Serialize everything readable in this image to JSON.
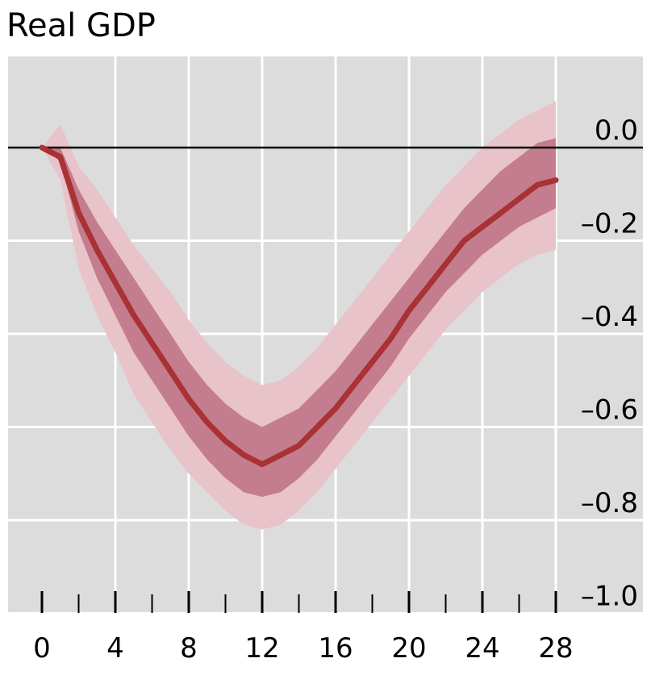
{
  "chart_data": {
    "type": "line",
    "title": "Real GDP",
    "xlabel": "",
    "ylabel": "",
    "xlim": [
      -1.5,
      31
    ],
    "ylim": [
      -1.05,
      0.2
    ],
    "x_ticks": [
      0,
      4,
      8,
      12,
      16,
      20,
      24,
      28
    ],
    "x_tick_labels": [
      "0",
      "4",
      "8",
      "12",
      "16",
      "20",
      "24",
      "28"
    ],
    "y_ticks": [
      0.0,
      -0.2,
      -0.4,
      -0.6,
      -0.8,
      -1.0
    ],
    "y_tick_labels": [
      "0.0",
      "–0.2",
      "–0.4",
      "–0.6",
      "–0.8",
      "–1.0"
    ],
    "y_axis_position": "right",
    "grid": true,
    "zero_line": true,
    "x": [
      0,
      1,
      2,
      3,
      4,
      5,
      6,
      7,
      8,
      9,
      10,
      11,
      12,
      13,
      14,
      15,
      16,
      17,
      18,
      19,
      20,
      21,
      22,
      23,
      24,
      25,
      26,
      27,
      28
    ],
    "series": [
      {
        "values": [
          0.0,
          -0.02,
          -0.14,
          -0.22,
          -0.29,
          -0.36,
          -0.42,
          -0.48,
          -0.54,
          -0.59,
          -0.63,
          -0.66,
          -0.68,
          -0.66,
          -0.64,
          -0.6,
          -0.56,
          -0.51,
          -0.46,
          -0.41,
          -0.35,
          -0.3,
          -0.25,
          -0.2,
          -0.17,
          -0.14,
          -0.11,
          -0.08,
          -0.07
        ]
      }
    ],
    "inner_band": {
      "lower": [
        0.0,
        -0.03,
        -0.18,
        -0.28,
        -0.36,
        -0.44,
        -0.5,
        -0.56,
        -0.62,
        -0.67,
        -0.71,
        -0.74,
        -0.75,
        -0.74,
        -0.71,
        -0.67,
        -0.62,
        -0.57,
        -0.52,
        -0.47,
        -0.41,
        -0.36,
        -0.31,
        -0.27,
        -0.23,
        -0.2,
        -0.17,
        -0.15,
        -0.13
      ],
      "upper": [
        0.0,
        0.0,
        -0.09,
        -0.16,
        -0.22,
        -0.28,
        -0.34,
        -0.4,
        -0.46,
        -0.51,
        -0.55,
        -0.58,
        -0.6,
        -0.58,
        -0.56,
        -0.52,
        -0.48,
        -0.43,
        -0.38,
        -0.33,
        -0.28,
        -0.23,
        -0.18,
        -0.13,
        -0.09,
        -0.05,
        -0.02,
        0.01,
        0.02
      ]
    },
    "outer_band": {
      "lower": [
        0.0,
        -0.07,
        -0.26,
        -0.36,
        -0.44,
        -0.53,
        -0.59,
        -0.65,
        -0.7,
        -0.74,
        -0.78,
        -0.81,
        -0.82,
        -0.81,
        -0.78,
        -0.74,
        -0.69,
        -0.64,
        -0.59,
        -0.54,
        -0.49,
        -0.44,
        -0.39,
        -0.35,
        -0.31,
        -0.28,
        -0.25,
        -0.23,
        -0.22
      ],
      "upper": [
        0.0,
        0.05,
        -0.04,
        -0.09,
        -0.15,
        -0.21,
        -0.26,
        -0.31,
        -0.37,
        -0.42,
        -0.46,
        -0.49,
        -0.51,
        -0.5,
        -0.47,
        -0.43,
        -0.38,
        -0.33,
        -0.28,
        -0.23,
        -0.18,
        -0.13,
        -0.08,
        -0.04,
        0.0,
        0.03,
        0.06,
        0.08,
        0.1
      ]
    },
    "colors": {
      "background": "#dcdcdc",
      "grid": "#ffffff",
      "line": "#a83234",
      "inner_band": "#c47d8e",
      "outer_band": "#e8c3ca",
      "zero_line": "#000000",
      "ticks": "#000000"
    }
  }
}
